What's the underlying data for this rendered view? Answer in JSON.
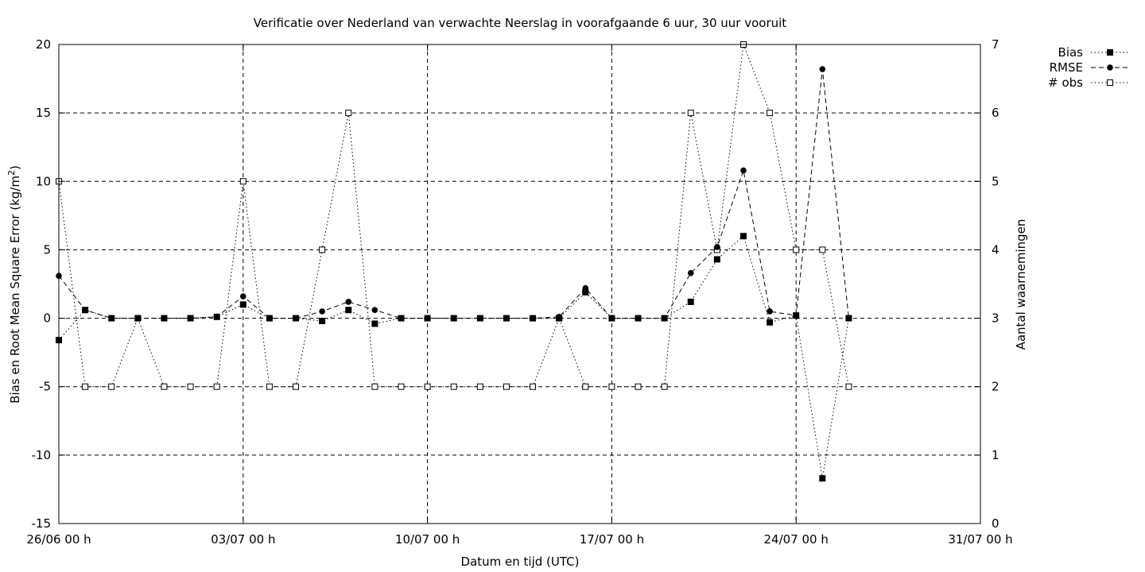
{
  "chart_data": {
    "type": "line",
    "title": "Verificatie over Nederland van verwachte Neerslag in voorafgaande 6 uur, 30 uur vooruit",
    "xlabel": "Datum en tijd (UTC)",
    "ylabel_main": "Bias en Root Mean Square Error (kg/m",
    "ylabel_sup": "2",
    "ylabel_close": ")",
    "y2label": "Aantal waarnemingen",
    "x_range_days": [
      0,
      35
    ],
    "x_ticks": [
      {
        "day": 0,
        "label": "26/06 00 h"
      },
      {
        "day": 7,
        "label": "03/07 00 h"
      },
      {
        "day": 14,
        "label": "10/07 00 h"
      },
      {
        "day": 21,
        "label": "17/07 00 h"
      },
      {
        "day": 28,
        "label": "24/07 00 h"
      },
      {
        "day": 35,
        "label": "31/07 00 h"
      }
    ],
    "ylim": [
      -15,
      20
    ],
    "y_ticks": [
      -15,
      -10,
      -5,
      0,
      5,
      10,
      15,
      20
    ],
    "y2lim": [
      0,
      7
    ],
    "y2_ticks": [
      0,
      1,
      2,
      3,
      4,
      5,
      6,
      7
    ],
    "grid": true,
    "legend_position": "top-right",
    "x_days": [
      0,
      1,
      2,
      3,
      4,
      5,
      6,
      7,
      8,
      9,
      10,
      11,
      12,
      13,
      14,
      15,
      16,
      17,
      18,
      19,
      20,
      21,
      22,
      23,
      24,
      25,
      26,
      27,
      28,
      29,
      30
    ],
    "series": [
      {
        "name": "Bias",
        "axis": "left",
        "marker": "filled-square",
        "dash": "dotted",
        "values": [
          -1.6,
          0.6,
          0.0,
          0.0,
          0.0,
          0.0,
          0.1,
          1.0,
          0.0,
          0.0,
          -0.2,
          0.6,
          -0.4,
          0.0,
          0.0,
          0.0,
          0.0,
          0.0,
          0.0,
          0.0,
          1.9,
          0.0,
          0.0,
          0.0,
          1.2,
          4.3,
          6.0,
          -0.3,
          0.2,
          -11.7,
          0.0
        ]
      },
      {
        "name": "RMSE",
        "axis": "left",
        "marker": "filled-circle",
        "dash": "dashed",
        "values": [
          3.1,
          0.6,
          0.0,
          0.0,
          0.0,
          0.0,
          0.1,
          1.6,
          0.0,
          0.0,
          0.5,
          1.2,
          0.6,
          0.0,
          0.0,
          0.0,
          0.0,
          0.0,
          0.0,
          0.1,
          2.2,
          0.0,
          0.0,
          0.0,
          3.3,
          5.2,
          10.8,
          0.5,
          0.2,
          18.2,
          0.0
        ]
      },
      {
        "name": "# obs",
        "axis": "right",
        "marker": "open-square",
        "dash": "dotted",
        "values": [
          5,
          2,
          2,
          3,
          2,
          2,
          2,
          5,
          2,
          2,
          4,
          6,
          2,
          2,
          2,
          2,
          2,
          2,
          2,
          3,
          2,
          2,
          2,
          2,
          6,
          4,
          7,
          6,
          4,
          4,
          2
        ]
      }
    ]
  }
}
